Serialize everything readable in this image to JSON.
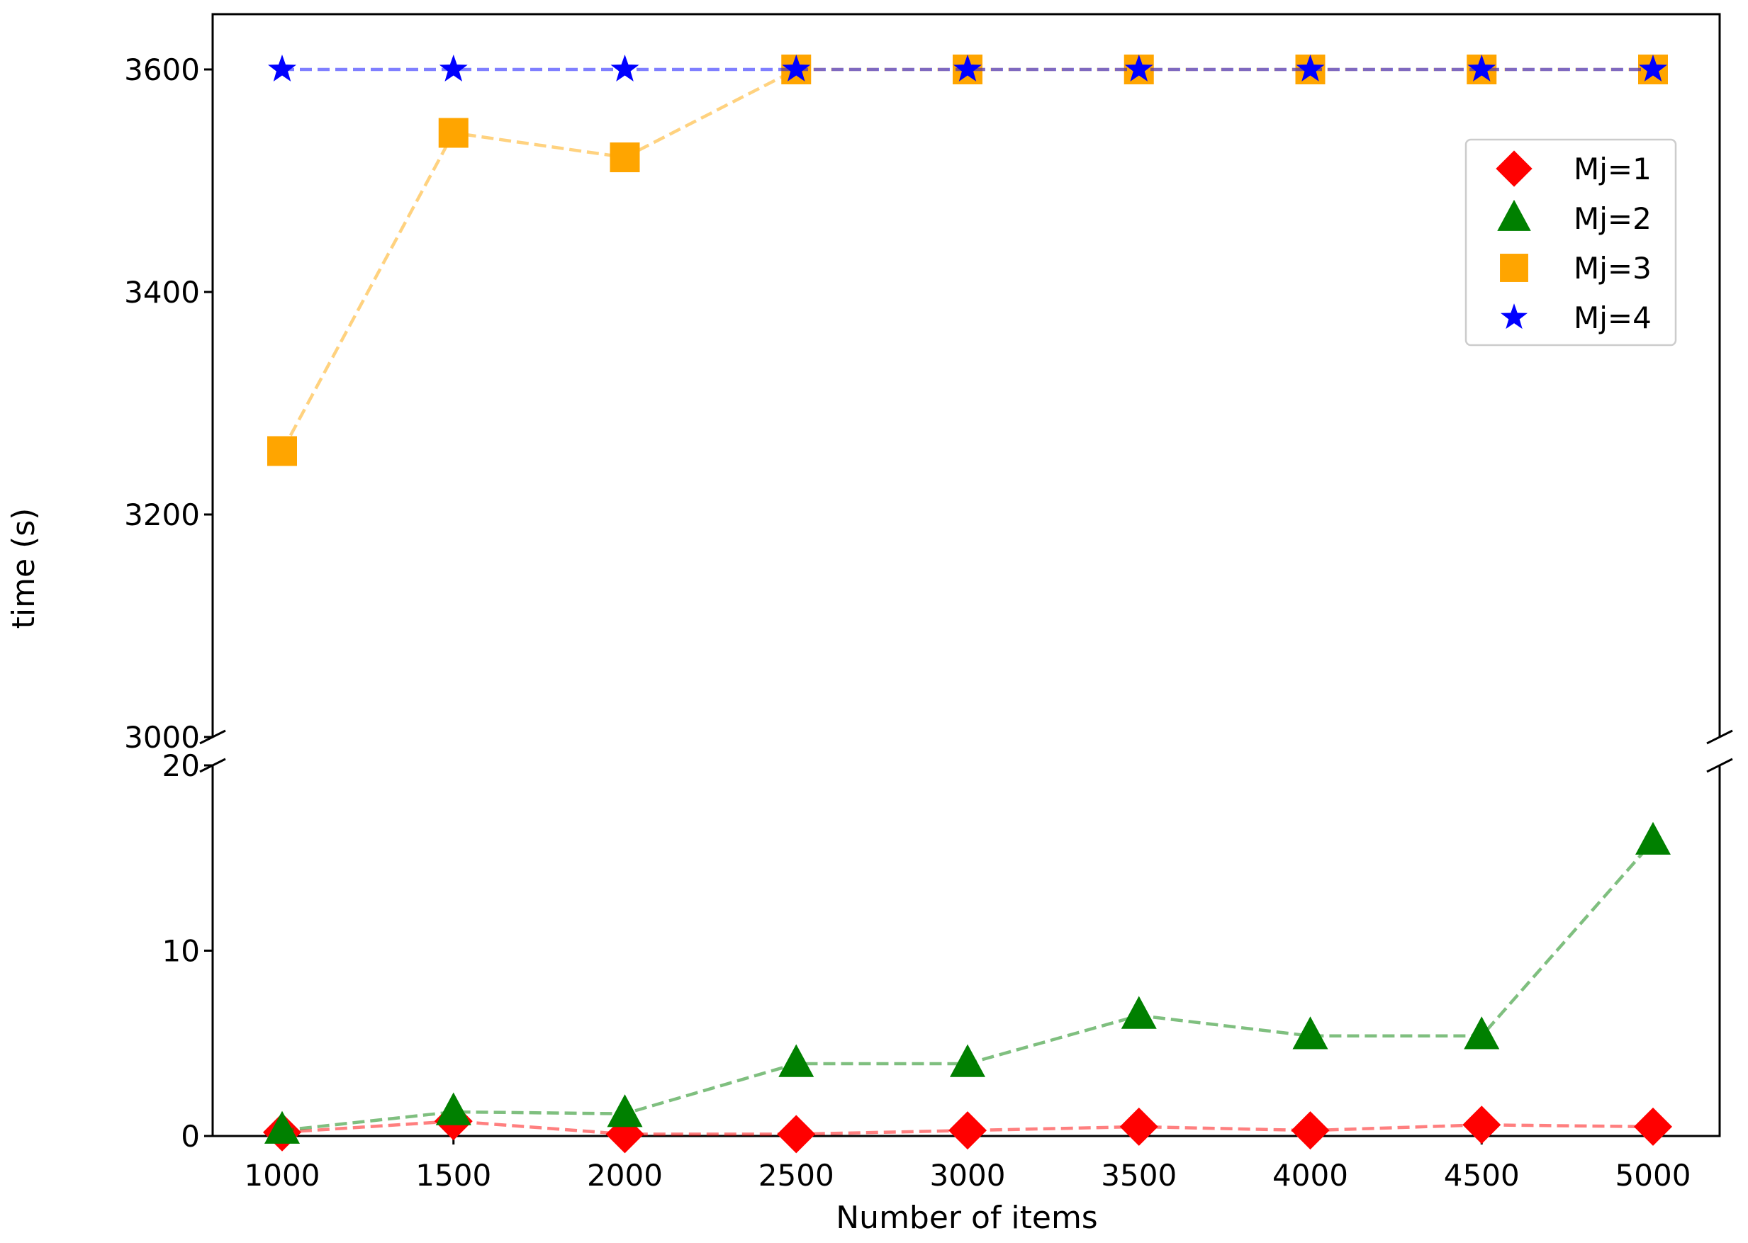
{
  "chart_data": {
    "type": "line",
    "title": "",
    "xlabel": "Number of items",
    "ylabel": "time (s)",
    "x": [
      1000,
      1500,
      2000,
      2500,
      3000,
      3500,
      4000,
      4500,
      5000
    ],
    "xlim": [
      800,
      5200
    ],
    "broken_y_axis": true,
    "ylim_upper": [
      3000,
      3650
    ],
    "ylim_lower": [
      0,
      20
    ],
    "yticks_upper": [
      3000,
      3200,
      3400,
      3600
    ],
    "yticks_lower": [
      0,
      10,
      20
    ],
    "grid": false,
    "legend_position": "upper-right",
    "series": [
      {
        "name": "Mj=1",
        "marker": "diamond",
        "color": "#ff0000",
        "values": [
          0.2,
          0.8,
          0.1,
          0.1,
          0.3,
          0.5,
          0.3,
          0.6,
          0.5
        ]
      },
      {
        "name": "Mj=2",
        "marker": "triangle",
        "color": "#008000",
        "values": [
          0.3,
          1.3,
          1.2,
          3.9,
          3.9,
          6.5,
          5.4,
          5.4,
          15.9
        ]
      },
      {
        "name": "Mj=3",
        "marker": "square",
        "color": "#ffa500",
        "values": [
          3257,
          3543,
          3521,
          3600,
          3600,
          3600,
          3600,
          3600,
          3600
        ]
      },
      {
        "name": "Mj=4",
        "marker": "star",
        "color": "#0000ff",
        "values": [
          3600,
          3600,
          3600,
          3600,
          3600,
          3600,
          3600,
          3600,
          3600
        ]
      }
    ]
  }
}
